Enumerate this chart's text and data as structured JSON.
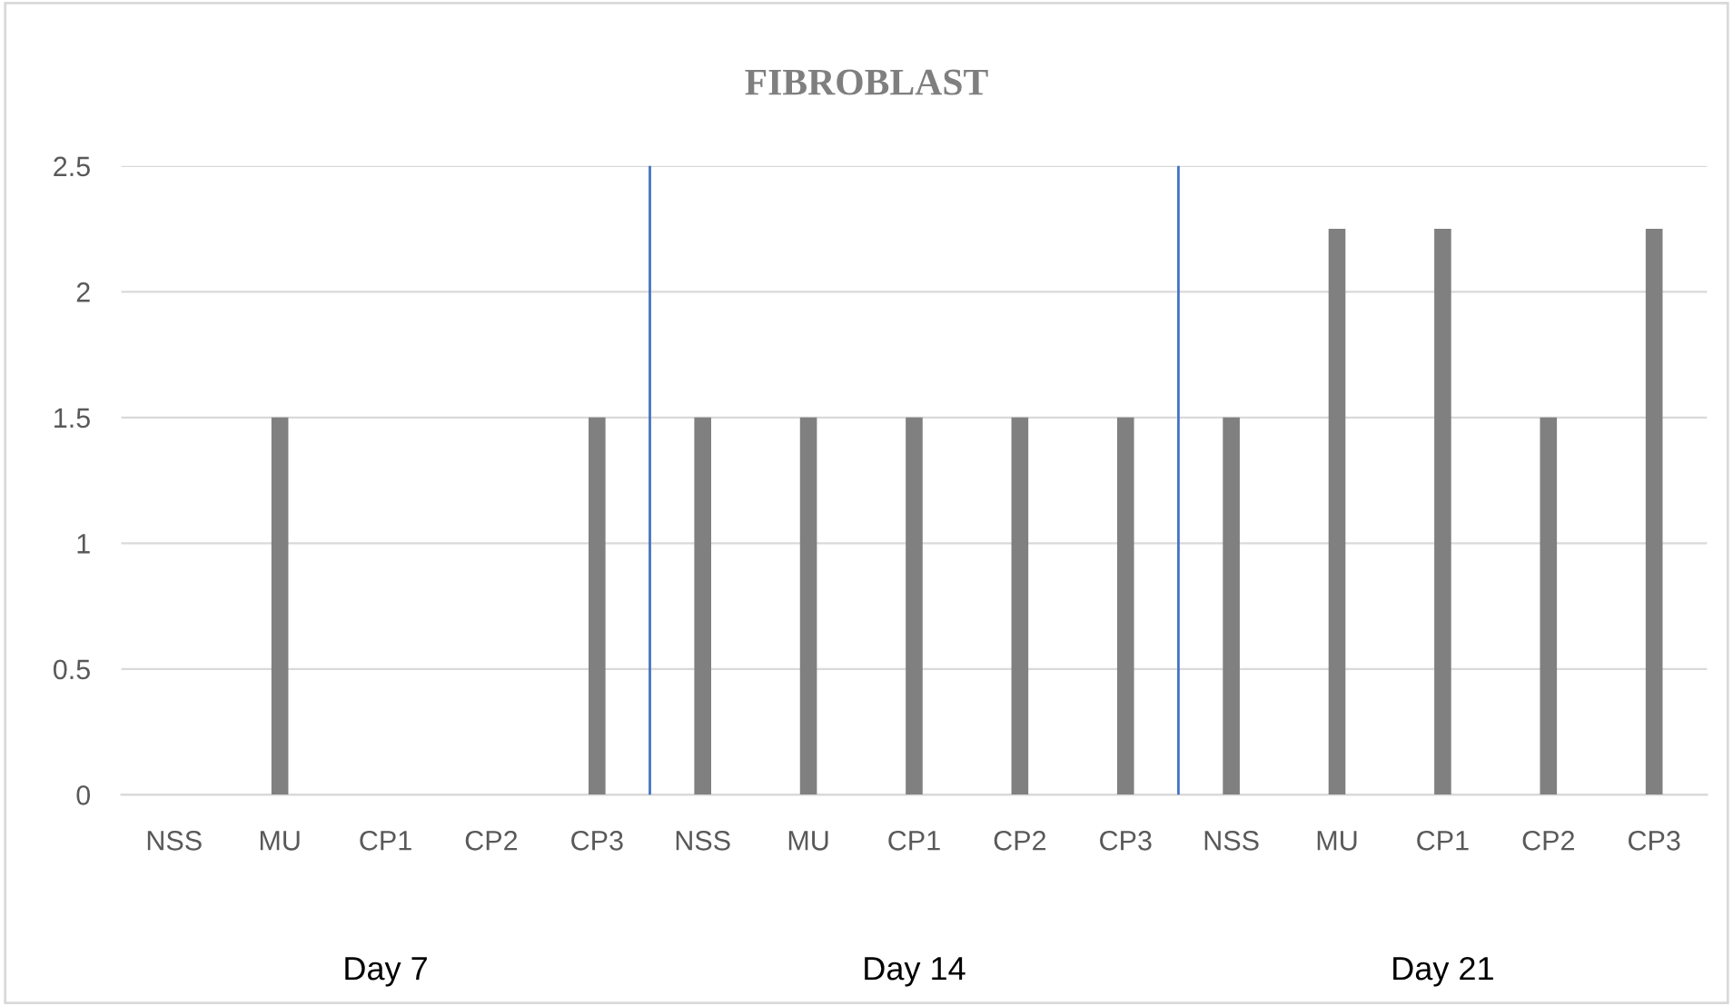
{
  "chart_data": {
    "type": "bar",
    "title": "FIBROBLAST",
    "categories": [
      "NSS",
      "MU",
      "CP1",
      "CP2",
      "CP3",
      "NSS",
      "MU",
      "CP1",
      "CP2",
      "CP3",
      "NSS",
      "MU",
      "CP1",
      "CP2",
      "CP3"
    ],
    "values": [
      0,
      1.5,
      0,
      0,
      1.5,
      1.5,
      1.5,
      1.5,
      1.5,
      1.5,
      1.5,
      2.25,
      2.25,
      1.5,
      2.25
    ],
    "color": "#808080",
    "ylim": [
      0,
      2.5
    ],
    "yticks": [
      {
        "value": 0,
        "label": "0"
      },
      0.5,
      {
        "value": 1,
        "label": "1"
      },
      1.5,
      {
        "value": 2,
        "label": "2"
      },
      2.5
    ],
    "grid": "y",
    "annotations": [
      "Day 7",
      "Day 14",
      "Day 21"
    ]
  }
}
